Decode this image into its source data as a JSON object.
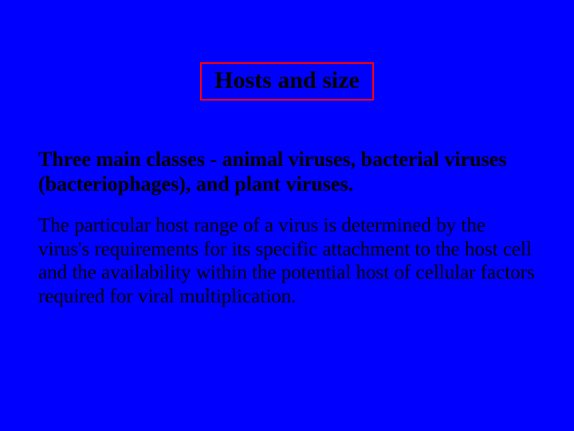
{
  "slide": {
    "background_color": "#0000ff",
    "title_border_color": "#ff0000",
    "text_color": "#000000",
    "title": "Hosts and size",
    "title_fontsize": 30,
    "bold_line": "Three main classes - animal viruses, bacterial viruses (bacteriophages), and plant viruses.",
    "bold_fontsize": 26,
    "body": "The particular host range of a virus is determined by the virus's requirements for its specific attachment to the host cell and the availability within the potential host of cellular factors required for viral multiplication.",
    "body_fontsize": 25,
    "font_family": "Times New Roman"
  }
}
